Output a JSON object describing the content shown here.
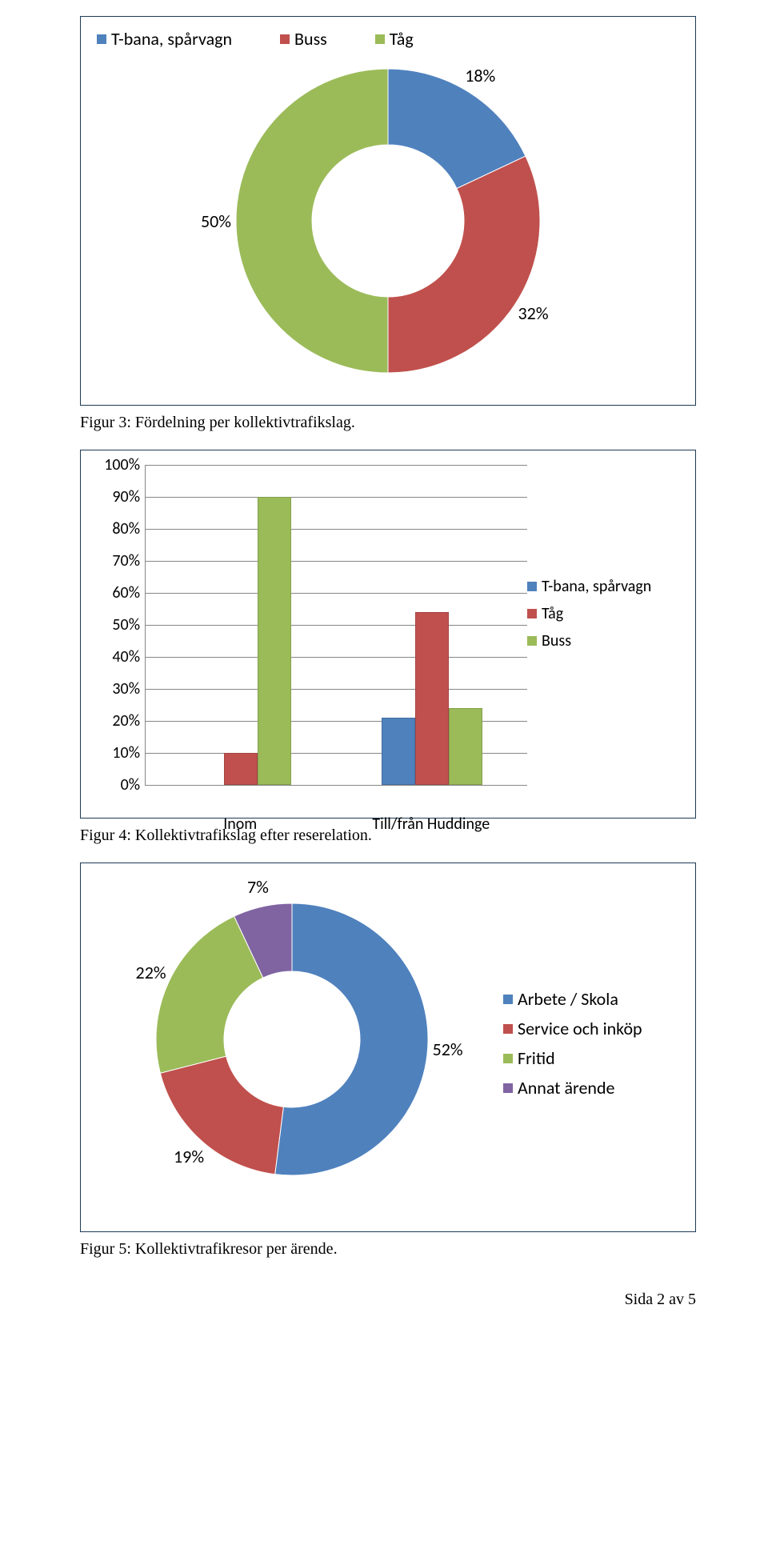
{
  "colors": {
    "blue": "#4f81bd",
    "red": "#c0504d",
    "green": "#9bbb59",
    "purple": "#8064a2",
    "border": "#1e3a56",
    "grid": "#868686"
  },
  "chart1": {
    "type": "donut",
    "legend": [
      {
        "label": "T-bana, spårvagn",
        "color": "#4f81bd"
      },
      {
        "label": "Buss",
        "color": "#c0504d"
      },
      {
        "label": "Tåg",
        "color": "#9bbb59"
      }
    ],
    "outer_r": 190,
    "inner_r": 95,
    "slices": [
      {
        "label": "18%",
        "value": 18,
        "color": "#4f81bd"
      },
      {
        "label": "32%",
        "value": 32,
        "color": "#c0504d"
      },
      {
        "label": "50%",
        "value": 50,
        "color": "#9bbb59"
      }
    ],
    "caption": "Figur 3: Fördelning per kollektivtrafikslag."
  },
  "chart2": {
    "type": "bar",
    "ylim": [
      0,
      100
    ],
    "ytick_step": 10,
    "ytick_suffix": "%",
    "categories": [
      "Inom",
      "Till/från Huddinge"
    ],
    "series": [
      {
        "label": "T-bana, spårvagn",
        "color": "#4f81bd",
        "values": [
          0,
          21
        ]
      },
      {
        "label": "Tåg",
        "color": "#c0504d",
        "values": [
          10,
          54
        ]
      },
      {
        "label": "Buss",
        "color": "#9bbb59",
        "values": [
          90,
          24
        ]
      }
    ],
    "caption": "Figur 4: Kollektivtrafikslag efter reserelation."
  },
  "chart3": {
    "type": "donut",
    "outer_r": 170,
    "inner_r": 85,
    "slices": [
      {
        "label": "52%",
        "value": 52,
        "color": "#4f81bd"
      },
      {
        "label": "19%",
        "value": 19,
        "color": "#c0504d"
      },
      {
        "label": "22%",
        "value": 22,
        "color": "#9bbb59"
      },
      {
        "label": "7%",
        "value": 7,
        "color": "#8064a2"
      }
    ],
    "legend": [
      {
        "label": "Arbete / Skola",
        "color": "#4f81bd"
      },
      {
        "label": "Service och inköp",
        "color": "#c0504d"
      },
      {
        "label": "Fritid",
        "color": "#9bbb59"
      },
      {
        "label": "Annat ärende",
        "color": "#8064a2"
      }
    ],
    "caption": "Figur 5: Kollektivtrafikresor per ärende."
  },
  "footer": "Sida 2 av 5"
}
